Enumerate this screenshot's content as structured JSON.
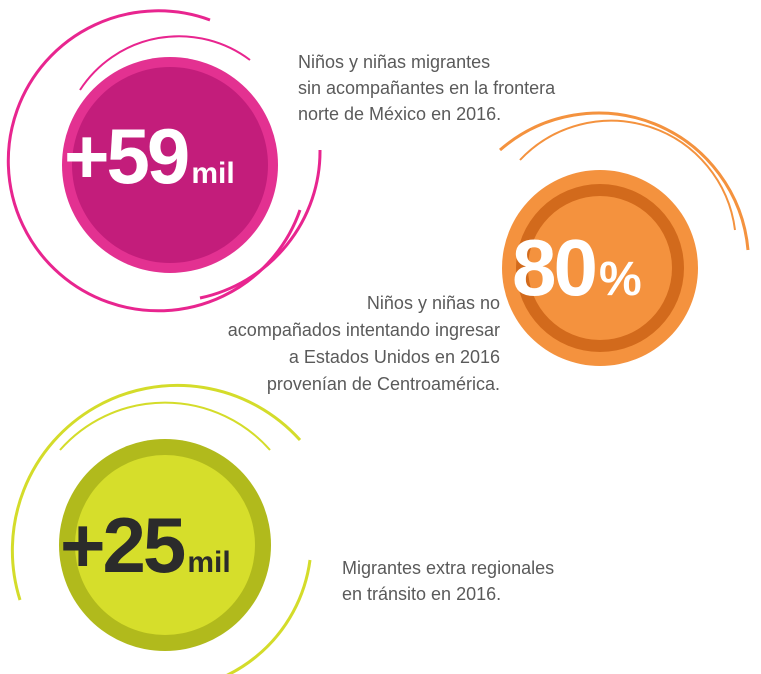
{
  "stats": [
    {
      "value": "+59",
      "unit": "mil",
      "description": [
        "Niños y niñas migrantes",
        "sin acompañantes en la frontera",
        "norte de México en 2016."
      ]
    },
    {
      "value": "80",
      "unit": "%",
      "description": [
        "Niños y niñas no",
        "acompañados intentando ingresar",
        "a Estados Unidos en 2016",
        "provenían de Centroamérica."
      ]
    },
    {
      "value": "+25",
      "unit": "mil",
      "description": [
        "Migrantes extra regionales",
        "en tránsito en 2016."
      ]
    }
  ]
}
